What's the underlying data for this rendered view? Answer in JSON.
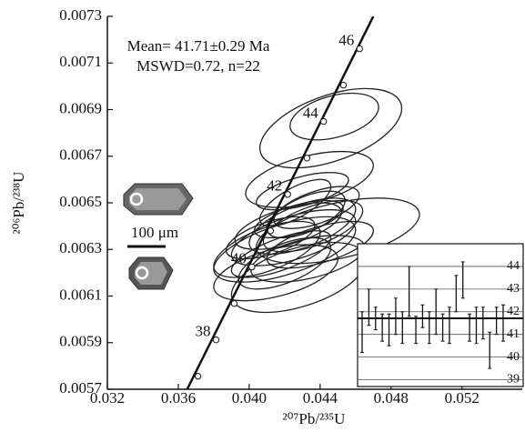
{
  "chart_data": {
    "type": "concordia",
    "x_label": "²⁰⁷Pb/²³⁵U",
    "y_label": "²⁰⁶Pb/²³⁸U",
    "annotations": [
      "Mean= 41.71±0.29 Ma",
      "MSWD=0.72, n=22"
    ],
    "scale_label": "100 μm",
    "xlim": [
      0.032,
      0.0554
    ],
    "ylim": [
      0.0057,
      0.0073
    ],
    "xticks": [
      0.032,
      0.036,
      {
        "value": 0.04,
        "label": "0.040"
      },
      0.044,
      0.048,
      0.052
    ],
    "yticks": [
      0.0057,
      0.0059,
      0.0061,
      0.0063,
      0.0065,
      0.0067,
      0.0069,
      0.0071,
      0.0073
    ],
    "concordia": {
      "x": [
        0.0365,
        0.047
      ],
      "y": [
        0.0057,
        0.0073
      ]
    },
    "age_markers": [
      {
        "x": 0.037111,
        "y": 0.005756
      },
      {
        "x": 0.038133,
        "y": 0.005912,
        "label": "38"
      },
      {
        "x": 0.039156,
        "y": 0.006068
      },
      {
        "x": 0.040152,
        "y": 0.006225,
        "label": "40"
      },
      {
        "x": 0.041205,
        "y": 0.00638
      },
      {
        "x": 0.042173,
        "y": 0.006536,
        "label": "42"
      },
      {
        "x": 0.043259,
        "y": 0.006692
      },
      {
        "x": 0.044198,
        "y": 0.006849,
        "label": "44"
      },
      {
        "x": 0.045315,
        "y": 0.007005
      },
      {
        "x": 0.046226,
        "y": 0.007161,
        "label": "46"
      }
    ],
    "ellipses": [
      {
        "x": 0.0446,
        "y": 0.00682,
        "x_err": 0.004,
        "y_err": 0.00017,
        "rho": 0.5
      },
      {
        "x": 0.0448,
        "y": 0.00687,
        "x_err": 0.0025,
        "y_err": 0.0001,
        "rho": 0.4
      },
      {
        "x": 0.0434,
        "y": 0.0066,
        "x_err": 0.0036,
        "y_err": 0.00012,
        "rho": 0.5
      },
      {
        "x": 0.045,
        "y": 0.00638,
        "x_err": 0.0046,
        "y_err": 0.00014,
        "rho": 0.5
      },
      {
        "x": 0.043,
        "y": 0.0064,
        "x_err": 0.003,
        "y_err": 0.00012,
        "rho": 0.6
      },
      {
        "x": 0.0432,
        "y": 0.00645,
        "x_err": 0.0022,
        "y_err": 0.0001,
        "rho": 0.6
      },
      {
        "x": 0.0428,
        "y": 0.00643,
        "x_err": 0.0025,
        "y_err": 8e-05,
        "rho": 0.6
      },
      {
        "x": 0.0425,
        "y": 0.00635,
        "x_err": 0.0035,
        "y_err": 0.00012,
        "rho": 0.6
      },
      {
        "x": 0.0422,
        "y": 0.0064,
        "x_err": 0.003,
        "y_err": 0.0001,
        "rho": 0.6
      },
      {
        "x": 0.042,
        "y": 0.0063,
        "x_err": 0.004,
        "y_err": 0.00014,
        "rho": 0.6
      },
      {
        "x": 0.0418,
        "y": 0.00628,
        "x_err": 0.0028,
        "y_err": 0.0001,
        "rho": 0.7
      },
      {
        "x": 0.041,
        "y": 0.0063,
        "x_err": 0.003,
        "y_err": 0.00012,
        "rho": 0.6
      },
      {
        "x": 0.0415,
        "y": 0.0062,
        "x_err": 0.0035,
        "y_err": 0.00012,
        "rho": 0.5
      },
      {
        "x": 0.0428,
        "y": 0.00618,
        "x_err": 0.0038,
        "y_err": 0.00015,
        "rho": 0.5
      },
      {
        "x": 0.044,
        "y": 0.00632,
        "x_err": 0.003,
        "y_err": 0.0001,
        "rho": 0.6
      },
      {
        "x": 0.0436,
        "y": 0.0064,
        "x_err": 0.0028,
        "y_err": 0.00011,
        "rho": 0.6
      },
      {
        "x": 0.0426,
        "y": 0.0065,
        "x_err": 0.002,
        "y_err": 0.0001,
        "rho": 0.7
      },
      {
        "x": 0.043,
        "y": 0.00655,
        "x_err": 0.0026,
        "y_err": 8e-05,
        "rho": 0.6
      },
      {
        "x": 0.0412,
        "y": 0.00635,
        "x_err": 0.0025,
        "y_err": 9e-05,
        "rho": 0.6
      },
      {
        "x": 0.0438,
        "y": 0.00648,
        "x_err": 0.0024,
        "y_err": 9e-05,
        "rho": 0.6
      },
      {
        "x": 0.0433,
        "y": 0.00626,
        "x_err": 0.0032,
        "y_err": 0.0001,
        "rho": 0.5
      },
      {
        "x": 0.042,
        "y": 0.00624,
        "x_err": 0.0026,
        "y_err": 0.00011,
        "rho": 0.6
      }
    ],
    "inset": {
      "ylim": [
        38.7,
        45
      ],
      "yticks": [
        39,
        40,
        41,
        42,
        43,
        44
      ],
      "mean": 41.71,
      "values": [
        41.1,
        42.2,
        41.7,
        41.3,
        41.2,
        41.8,
        41.3,
        42.9,
        41.2,
        41.8,
        41.3,
        42.0,
        41.3,
        41.4,
        42.8,
        43.4,
        41.3,
        41.4,
        41.5,
        40.3,
        41.6,
        41.5
      ],
      "errors": [
        0.9,
        0.8,
        0.5,
        0.6,
        0.7,
        0.8,
        0.7,
        1.1,
        0.6,
        0.5,
        0.7,
        1.0,
        0.6,
        0.8,
        0.8,
        0.8,
        0.6,
        0.8,
        0.7,
        0.8,
        0.6,
        0.8
      ]
    }
  }
}
